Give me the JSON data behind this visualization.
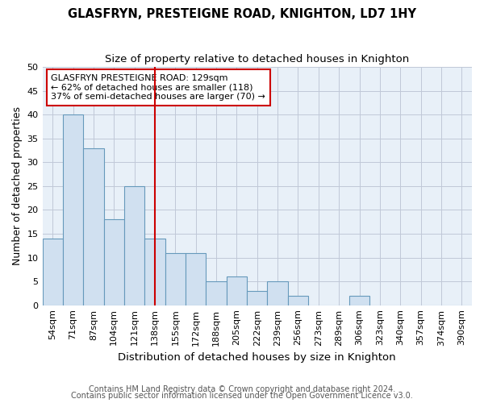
{
  "title": "GLASFRYN, PRESTEIGNE ROAD, KNIGHTON, LD7 1HY",
  "subtitle": "Size of property relative to detached houses in Knighton",
  "xlabel": "Distribution of detached houses by size in Knighton",
  "ylabel": "Number of detached properties",
  "categories": [
    "54sqm",
    "71sqm",
    "87sqm",
    "104sqm",
    "121sqm",
    "138sqm",
    "155sqm",
    "172sqm",
    "188sqm",
    "205sqm",
    "222sqm",
    "239sqm",
    "256sqm",
    "273sqm",
    "289sqm",
    "306sqm",
    "323sqm",
    "340sqm",
    "357sqm",
    "374sqm",
    "390sqm"
  ],
  "values": [
    14,
    40,
    33,
    18,
    25,
    14,
    11,
    11,
    5,
    6,
    3,
    5,
    2,
    0,
    0,
    2,
    0,
    0,
    0,
    0,
    0
  ],
  "bar_color": "#d0e0f0",
  "bar_edge_color": "#6699bb",
  "ylim": [
    0,
    50
  ],
  "yticks": [
    0,
    5,
    10,
    15,
    20,
    25,
    30,
    35,
    40,
    45,
    50
  ],
  "vline_x": 5.0,
  "vline_color": "#cc0000",
  "annotation_text": "GLASFRYN PRESTEIGNE ROAD: 129sqm\n← 62% of detached houses are smaller (118)\n37% of semi-detached houses are larger (70) →",
  "annotation_box_color": "#ffffff",
  "annotation_box_edge": "#cc0000",
  "footer_line1": "Contains HM Land Registry data © Crown copyright and database right 2024.",
  "footer_line2": "Contains public sector information licensed under the Open Government Licence v3.0.",
  "title_fontsize": 10.5,
  "subtitle_fontsize": 9.5,
  "ylabel_fontsize": 9,
  "xlabel_fontsize": 9.5,
  "tick_fontsize": 8,
  "annotation_fontsize": 8,
  "footer_fontsize": 7,
  "background_color": "#ffffff",
  "plot_bg_color": "#e8f0f8",
  "grid_color": "#c0c8d8"
}
